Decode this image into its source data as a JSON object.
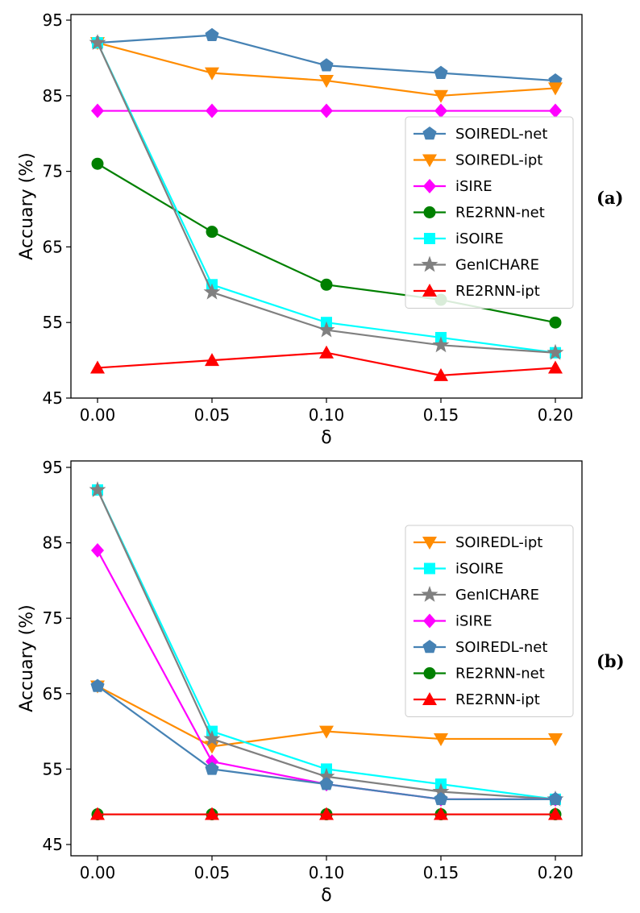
{
  "chart_data": [
    {
      "type": "line",
      "panel_label": "(a)",
      "xlabel": "δ",
      "ylabel": "Accuary (%)",
      "x": [
        0.0,
        0.05,
        0.1,
        0.15,
        0.2
      ],
      "xtick_labels": [
        "0.00",
        "0.05",
        "0.10",
        "0.15",
        "0.20"
      ],
      "ytick_labels": [
        "45",
        "55",
        "65",
        "75",
        "85",
        "95"
      ],
      "yticks": [
        45,
        55,
        65,
        75,
        85,
        95
      ],
      "ylim": [
        45,
        95
      ],
      "grid": false,
      "legend_placement": "center-right",
      "series": [
        {
          "name": "SOIREDL-net",
          "color": "#4682b4",
          "marker": "pentagon",
          "values": [
            92,
            93,
            89,
            88,
            87
          ]
        },
        {
          "name": "SOIREDL-ipt",
          "color": "#ff8c00",
          "marker": "triangle-down",
          "values": [
            92,
            88,
            87,
            85,
            86
          ]
        },
        {
          "name": "iSIRE",
          "color": "#ff00ff",
          "marker": "diamond",
          "values": [
            83,
            83,
            83,
            83,
            83
          ]
        },
        {
          "name": "RE2RNN-net",
          "color": "#008000",
          "marker": "circle",
          "values": [
            76,
            67,
            60,
            58,
            55
          ]
        },
        {
          "name": "iSOIRE",
          "color": "#00ffff",
          "marker": "square",
          "values": [
            92,
            60,
            55,
            53,
            51
          ]
        },
        {
          "name": "GenICHARE",
          "color": "#808080",
          "marker": "star",
          "values": [
            92,
            59,
            54,
            52,
            51
          ]
        },
        {
          "name": "RE2RNN-ipt",
          "color": "#ff0000",
          "marker": "triangle-up",
          "values": [
            49,
            50,
            51,
            48,
            49
          ]
        }
      ]
    },
    {
      "type": "line",
      "panel_label": "(b)",
      "xlabel": "δ",
      "ylabel": "Accuary (%)",
      "x": [
        0.0,
        0.05,
        0.1,
        0.15,
        0.2
      ],
      "xtick_labels": [
        "0.00",
        "0.05",
        "0.10",
        "0.15",
        "0.20"
      ],
      "ytick_labels": [
        "45",
        "55",
        "65",
        "75",
        "85",
        "95"
      ],
      "yticks": [
        45,
        55,
        65,
        75,
        85,
        95
      ],
      "ylim": [
        45,
        95
      ],
      "grid": false,
      "legend_placement": "center-right",
      "series": [
        {
          "name": "SOIREDL-ipt",
          "color": "#ff8c00",
          "marker": "triangle-down",
          "values": [
            66,
            58,
            60,
            59,
            59
          ]
        },
        {
          "name": "iSOIRE",
          "color": "#00ffff",
          "marker": "square",
          "values": [
            92,
            60,
            55,
            53,
            51
          ]
        },
        {
          "name": "GenICHARE",
          "color": "#808080",
          "marker": "star",
          "values": [
            92,
            59,
            54,
            52,
            51
          ]
        },
        {
          "name": "iSIRE",
          "color": "#ff00ff",
          "marker": "diamond",
          "values": [
            84,
            56,
            53,
            51,
            51
          ]
        },
        {
          "name": "SOIREDL-net",
          "color": "#4682b4",
          "marker": "pentagon",
          "values": [
            66,
            55,
            53,
            51,
            51
          ]
        },
        {
          "name": "RE2RNN-net",
          "color": "#008000",
          "marker": "circle",
          "values": [
            49,
            49,
            49,
            49,
            49
          ]
        },
        {
          "name": "RE2RNN-ipt",
          "color": "#ff0000",
          "marker": "triangle-up",
          "values": [
            49,
            49,
            49,
            49,
            49
          ]
        }
      ]
    }
  ]
}
